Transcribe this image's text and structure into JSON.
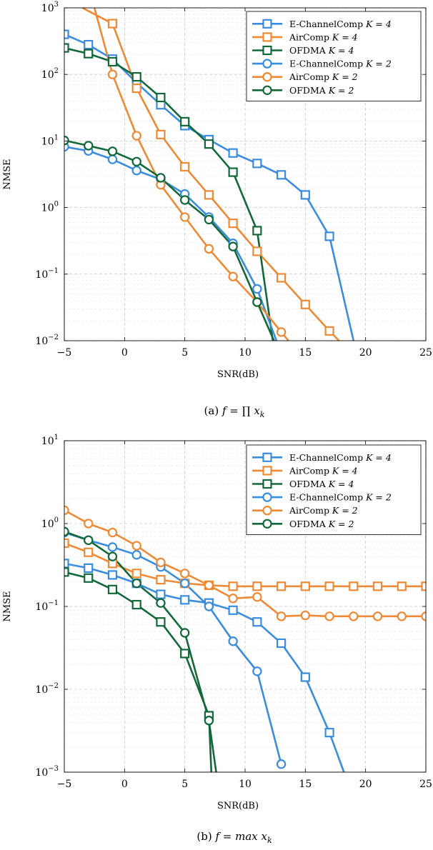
{
  "colors": {
    "E-ChannelComp": "#3a8dde",
    "AirComp": "#ee8a35",
    "OFDMA": "#13683a",
    "grid": "#c8c8c8"
  },
  "chart_data": [
    {
      "type": "line",
      "caption": "(a)  f = ∏ x_k",
      "caption_parts": {
        "label": "(a)",
        "formula": "f = ∏ x",
        "sub": "k"
      },
      "xlabel": "SNR(dB)",
      "ylabel": "NMSE",
      "yscale": "log",
      "xlim": [
        -5,
        25
      ],
      "ylim": [
        0.01,
        1000
      ],
      "xticks": [
        -5,
        0,
        5,
        10,
        15,
        20,
        25
      ],
      "yticks": [
        {
          "value": 0.01,
          "base": "10",
          "exp": "−2"
        },
        {
          "value": 0.1,
          "base": "10",
          "exp": "−1"
        },
        {
          "value": 1,
          "base": "10",
          "exp": "0"
        },
        {
          "value": 10,
          "base": "10",
          "exp": "1"
        },
        {
          "value": 100,
          "base": "10",
          "exp": "2"
        },
        {
          "value": 1000,
          "base": "10",
          "exp": "3"
        }
      ],
      "grid": true,
      "legend_position": "top-right",
      "series": [
        {
          "name": "E-ChannelComp",
          "k": "K = 4",
          "color": "#3a8dde",
          "marker": "square",
          "x": [
            -5,
            -3,
            -1,
            1,
            3,
            5,
            7,
            9,
            11,
            13,
            15,
            17,
            19
          ],
          "y": [
            400,
            280,
            170,
            75,
            35,
            17,
            10.5,
            6.6,
            4.6,
            3.1,
            1.55,
            0.37,
            0.01
          ]
        },
        {
          "name": "AirComp",
          "k": "K = 4",
          "color": "#ee8a35",
          "marker": "square",
          "x": [
            -3.5,
            -1,
            1,
            3,
            5,
            7,
            9,
            11,
            13,
            15,
            17,
            17.8
          ],
          "y": [
            1000,
            580,
            62,
            12.5,
            4.1,
            1.55,
            0.58,
            0.22,
            0.088,
            0.035,
            0.014,
            0.01
          ]
        },
        {
          "name": "OFDMA",
          "k": "K = 4",
          "color": "#13683a",
          "marker": "square",
          "x": [
            -5,
            -3,
            -1,
            1,
            3,
            5,
            7,
            9,
            11,
            12.3
          ],
          "y": [
            250,
            205,
            155,
            92,
            45,
            19.5,
            9.0,
            3.4,
            0.45,
            0.01
          ]
        },
        {
          "name": "E-ChannelComp",
          "k": "K = 2",
          "color": "#3a8dde",
          "marker": "circle",
          "x": [
            -5,
            -3,
            -1,
            1,
            3,
            5,
            7,
            9,
            11,
            12.6
          ],
          "y": [
            8.2,
            7.1,
            5.3,
            3.6,
            2.65,
            1.6,
            0.72,
            0.29,
            0.06,
            0.01
          ]
        },
        {
          "name": "AirComp",
          "k": "K = 2",
          "color": "#ee8a35",
          "marker": "circle",
          "x": [
            -2.5,
            -1,
            1,
            3,
            5,
            7,
            9,
            11,
            13,
            13.6
          ],
          "y": [
            1000,
            100,
            12,
            2.2,
            0.72,
            0.24,
            0.092,
            0.038,
            0.0135,
            0.01
          ]
        },
        {
          "name": "OFDMA",
          "k": "K = 2",
          "color": "#13683a",
          "marker": "circle",
          "x": [
            -5,
            -3,
            -1,
            1,
            3,
            5,
            7,
            9,
            11,
            12.4
          ],
          "y": [
            10.2,
            8.5,
            7.0,
            4.9,
            2.8,
            1.3,
            0.66,
            0.26,
            0.038,
            0.01
          ]
        }
      ]
    },
    {
      "type": "line",
      "caption": "(b)  f = max x_k",
      "caption_parts": {
        "label": "(b)",
        "formula": "f = max x",
        "sub": "k"
      },
      "xlabel": "SNR(dB)",
      "ylabel": "NMSE",
      "yscale": "log",
      "xlim": [
        -5,
        25
      ],
      "ylim": [
        0.001,
        10
      ],
      "xticks": [
        -5,
        0,
        5,
        10,
        15,
        20,
        25
      ],
      "yticks": [
        {
          "value": 0.001,
          "base": "10",
          "exp": "−3"
        },
        {
          "value": 0.01,
          "base": "10",
          "exp": "−2"
        },
        {
          "value": 0.1,
          "base": "10",
          "exp": "−1"
        },
        {
          "value": 1,
          "base": "10",
          "exp": "0"
        },
        {
          "value": 10,
          "base": "10",
          "exp": "1"
        }
      ],
      "grid": true,
      "legend_position": "top-right",
      "series": [
        {
          "name": "E-ChannelComp",
          "k": "K = 4",
          "color": "#3a8dde",
          "marker": "square",
          "x": [
            -5,
            -3,
            -1,
            1,
            3,
            5,
            7,
            9,
            11,
            13,
            15,
            17,
            18.2
          ],
          "y": [
            0.33,
            0.29,
            0.24,
            0.19,
            0.14,
            0.12,
            0.11,
            0.09,
            0.065,
            0.036,
            0.014,
            0.003,
            0.001
          ]
        },
        {
          "name": "AirComp",
          "k": "K = 4",
          "color": "#ee8a35",
          "marker": "square",
          "x": [
            -5,
            -3,
            -1,
            1,
            3,
            5,
            7,
            9,
            11,
            13,
            15,
            17,
            19,
            21,
            23,
            25
          ],
          "y": [
            0.58,
            0.45,
            0.33,
            0.25,
            0.21,
            0.19,
            0.18,
            0.175,
            0.175,
            0.175,
            0.175,
            0.175,
            0.175,
            0.175,
            0.175,
            0.175
          ]
        },
        {
          "name": "OFDMA",
          "k": "K = 4",
          "color": "#13683a",
          "marker": "square",
          "x": [
            -5,
            -3,
            -1,
            1,
            3,
            5,
            7,
            7.2
          ],
          "y": [
            0.26,
            0.22,
            0.16,
            0.105,
            0.065,
            0.027,
            0.0048,
            0.001
          ]
        },
        {
          "name": "E-ChannelComp",
          "k": "K = 2",
          "color": "#3a8dde",
          "marker": "circle",
          "x": [
            -5,
            -3,
            -1,
            1,
            3,
            5,
            7,
            9,
            11,
            13
          ],
          "y": [
            0.78,
            0.63,
            0.52,
            0.42,
            0.3,
            0.19,
            0.1,
            0.038,
            0.0165,
            0.00125
          ]
        },
        {
          "name": "AirComp",
          "k": "K = 2",
          "color": "#ee8a35",
          "marker": "circle",
          "x": [
            -5,
            -3,
            -1,
            1,
            3,
            5,
            7,
            9,
            11,
            13,
            15,
            17,
            19,
            21,
            23,
            25
          ],
          "y": [
            1.45,
            1.0,
            0.78,
            0.54,
            0.34,
            0.25,
            0.18,
            0.125,
            0.13,
            0.076,
            0.078,
            0.076,
            0.076,
            0.076,
            0.076,
            0.076
          ]
        },
        {
          "name": "OFDMA",
          "k": "K = 2",
          "color": "#13683a",
          "marker": "circle",
          "x": [
            -5,
            -3,
            -1,
            1,
            3,
            5,
            7,
            7.6
          ],
          "y": [
            0.8,
            0.63,
            0.4,
            0.19,
            0.11,
            0.048,
            0.0042,
            0.001
          ]
        }
      ]
    }
  ]
}
